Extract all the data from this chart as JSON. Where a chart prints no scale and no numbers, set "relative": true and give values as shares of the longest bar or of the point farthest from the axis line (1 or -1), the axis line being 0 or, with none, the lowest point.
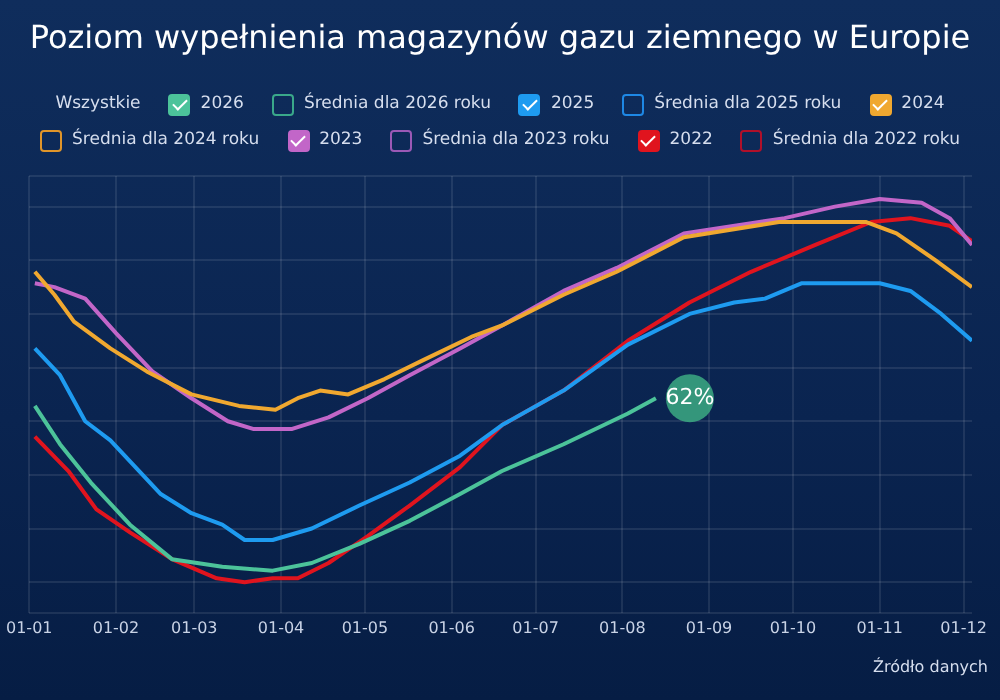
{
  "chart_data": {
    "type": "line",
    "title": "Poziom wypełnienia magazynów gazu ziemnego w Europie",
    "relative": true,
    "grid": true,
    "legend": "top",
    "marker": "none",
    "line_style": "solid",
    "xlim": [
      "--01-01",
      "--12-04"
    ],
    "xticks": [
      {
        "value": "--01-01",
        "label": "01-01"
      },
      {
        "value": "--02-01",
        "label": "01-02"
      },
      {
        "value": "--03-01",
        "label": "01-03"
      },
      {
        "value": "--04-01",
        "label": "01-04"
      },
      {
        "value": "--05-01",
        "label": "01-05"
      },
      {
        "value": "--06-01",
        "label": "01-06"
      },
      {
        "value": "--07-01",
        "label": "01-07"
      },
      {
        "value": "--08-01",
        "label": "01-08"
      },
      {
        "value": "--09-01",
        "label": "01-09"
      },
      {
        "value": "--10-01",
        "label": "01-10"
      },
      {
        "value": "--11-01",
        "label": "01-11"
      },
      {
        "value": "--12-01",
        "label": "01-12"
      }
    ],
    "annotations": [
      "Wszystkie",
      "Źródło danych",
      {
        "text": "62%",
        "x": "--08-13",
        "y": 0.48
      }
    ],
    "series": [
      {
        "name": "2026",
        "color": "#4cc39a",
        "x": [
          "--01-03",
          "--01-12",
          "--01-23",
          "--02-06",
          "--02-21",
          "--03-11",
          "--03-29",
          "--04-12",
          "--04-29",
          "--05-17",
          "--06-04",
          "--06-19",
          "--07-11",
          "--08-03",
          "--08-13"
        ],
        "values": [
          0.46,
          0.36,
          0.26,
          0.15,
          0.06,
          0.04,
          0.03,
          0.05,
          0.1,
          0.16,
          0.23,
          0.29,
          0.36,
          0.44,
          0.48
        ]
      },
      {
        "name": "Średnia dla 2026 roku",
        "color": "#3aa88a"
      },
      {
        "name": "2025",
        "color": "#1e9bf0",
        "x": [
          "--01-03",
          "--01-12",
          "--01-21",
          "--01-30",
          "--02-17",
          "--02-28",
          "--03-11",
          "--03-19",
          "--03-29",
          "--04-12",
          "--04-29",
          "--05-17",
          "--06-04",
          "--06-19",
          "--07-11",
          "--08-03",
          "--08-25",
          "--09-10",
          "--09-21",
          "--10-04",
          "--11-01",
          "--11-12",
          "--11-23",
          "--12-04"
        ],
        "values": [
          0.61,
          0.54,
          0.42,
          0.37,
          0.23,
          0.18,
          0.15,
          0.11,
          0.11,
          0.14,
          0.2,
          0.26,
          0.33,
          0.41,
          0.5,
          0.62,
          0.7,
          0.73,
          0.74,
          0.78,
          0.78,
          0.76,
          0.7,
          0.63
        ]
      },
      {
        "name": "Średnia dla 2025 roku",
        "color": "#1e88e5"
      },
      {
        "name": "2024",
        "color": "#f0a830",
        "x": [
          "--01-03",
          "--01-10",
          "--01-17",
          "--01-30",
          "--02-12",
          "--02-28",
          "--03-17",
          "--03-30",
          "--04-07",
          "--04-15",
          "--04-25",
          "--05-08",
          "--05-22",
          "--06-08",
          "--06-19",
          "--07-11",
          "--07-30",
          "--08-23",
          "--09-26",
          "--10-27",
          "--11-07",
          "--11-21",
          "--12-04"
        ],
        "values": [
          0.81,
          0.75,
          0.68,
          0.61,
          0.55,
          0.49,
          0.46,
          0.45,
          0.48,
          0.5,
          0.49,
          0.53,
          0.58,
          0.64,
          0.67,
          0.75,
          0.81,
          0.9,
          0.94,
          0.94,
          0.91,
          0.84,
          0.77
        ]
      },
      {
        "name": "Średnia dla 2024 roku",
        "color": "#e0952a"
      },
      {
        "name": "2023",
        "color": "#c266c8",
        "x": [
          "--01-03",
          "--01-10",
          "--01-21",
          "--02-01",
          "--02-14",
          "--02-28",
          "--03-13",
          "--03-22",
          "--04-05",
          "--04-18",
          "--05-02",
          "--05-17",
          "--06-04",
          "--06-19",
          "--07-11",
          "--07-30",
          "--08-23",
          "--09-28",
          "--10-16",
          "--11-01",
          "--11-16",
          "--11-26",
          "--12-04"
        ],
        "values": [
          0.78,
          0.77,
          0.74,
          0.65,
          0.55,
          0.48,
          0.42,
          0.4,
          0.4,
          0.43,
          0.48,
          0.54,
          0.61,
          0.67,
          0.76,
          0.82,
          0.91,
          0.95,
          0.98,
          1.0,
          0.99,
          0.95,
          0.88
        ]
      },
      {
        "name": "Średnia dla 2023 roku",
        "color": "#9b59b6"
      },
      {
        "name": "2022",
        "color": "#e0141e",
        "x": [
          "--01-03",
          "--01-15",
          "--01-25",
          "--02-06",
          "--02-21",
          "--03-09",
          "--03-19",
          "--03-29",
          "--04-07",
          "--04-18",
          "--05-02",
          "--05-17",
          "--06-04",
          "--06-19",
          "--07-11",
          "--08-03",
          "--08-25",
          "--09-16",
          "--10-09",
          "--10-29",
          "--11-12",
          "--11-26",
          "--12-04"
        ],
        "values": [
          0.38,
          0.29,
          0.19,
          0.13,
          0.06,
          0.01,
          0.0,
          0.01,
          0.01,
          0.05,
          0.12,
          0.2,
          0.3,
          0.41,
          0.5,
          0.63,
          0.73,
          0.81,
          0.88,
          0.94,
          0.95,
          0.93,
          0.89
        ]
      },
      {
        "name": "Średnia dla 2022 roku",
        "color": "#b0102a"
      }
    ]
  }
}
